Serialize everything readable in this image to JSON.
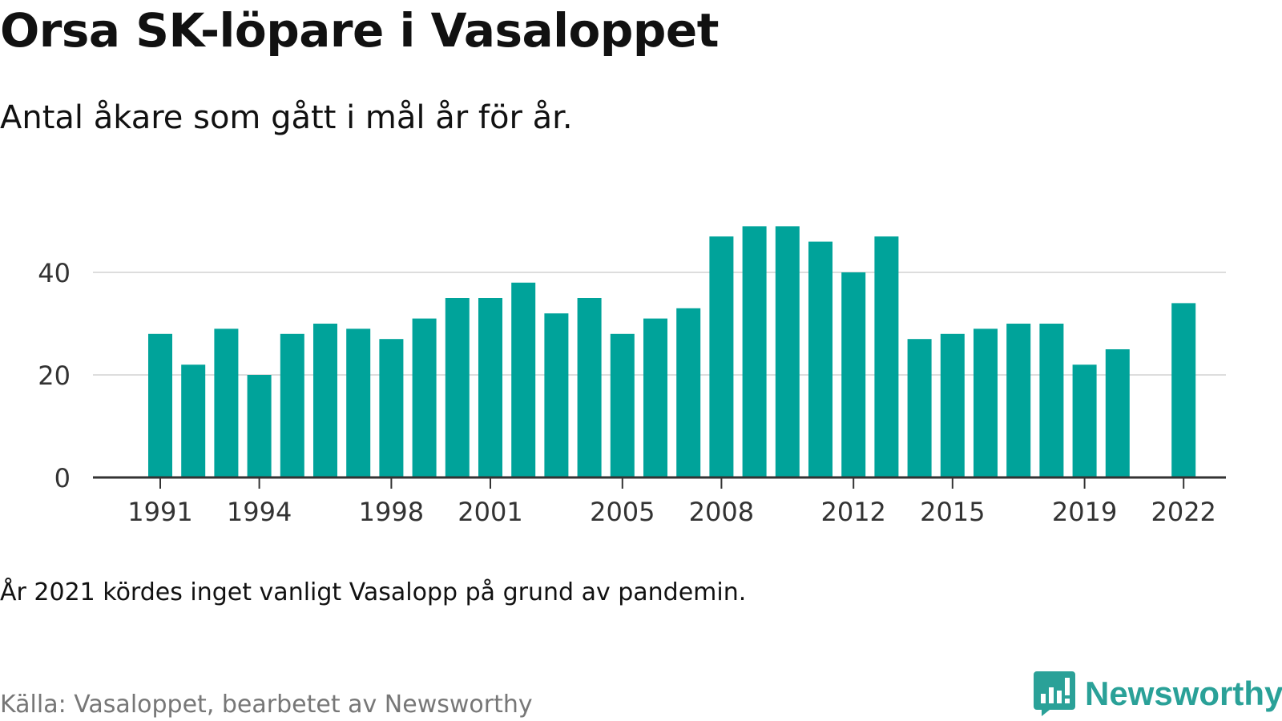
{
  "title": "Orsa SK-löpare i Vasaloppet",
  "subtitle": "Antal åkare som gått i mål år för år.",
  "note": "År 2021 kördes inget vanligt Vasalopp på grund av pandemin.",
  "source": "Källa: Vasaloppet, bearbetet av Newsworthy",
  "logo": {
    "text": "Newsworthy",
    "icon": "newsworthy-logo-icon"
  },
  "colors": {
    "bar": "#00a39a",
    "grid": "#dddddd",
    "axis": "#333333",
    "logo": "#2aa198"
  },
  "chart_data": {
    "type": "bar",
    "title": "Orsa SK-löpare i Vasaloppet",
    "subtitle": "Antal åkare som gått i mål år för år.",
    "xlabel": "",
    "ylabel": "",
    "x": [
      1991,
      1992,
      1993,
      1994,
      1995,
      1996,
      1997,
      1998,
      1999,
      2000,
      2001,
      2002,
      2003,
      2004,
      2005,
      2006,
      2007,
      2008,
      2009,
      2010,
      2011,
      2012,
      2013,
      2014,
      2015,
      2016,
      2017,
      2018,
      2019,
      2020,
      2021,
      2022
    ],
    "values": [
      28,
      22,
      29,
      20,
      28,
      30,
      29,
      27,
      31,
      35,
      35,
      38,
      32,
      35,
      28,
      31,
      33,
      47,
      49,
      49,
      46,
      40,
      47,
      27,
      28,
      29,
      30,
      30,
      22,
      25,
      null,
      34
    ],
    "x_ticks": [
      "1991",
      "1994",
      "1998",
      "2001",
      "2005",
      "2008",
      "2012",
      "2015",
      "2019",
      "2022"
    ],
    "y_ticks": [
      "0",
      "20",
      "40"
    ],
    "ylim": [
      0,
      50
    ],
    "grid": true,
    "legend": "none"
  }
}
